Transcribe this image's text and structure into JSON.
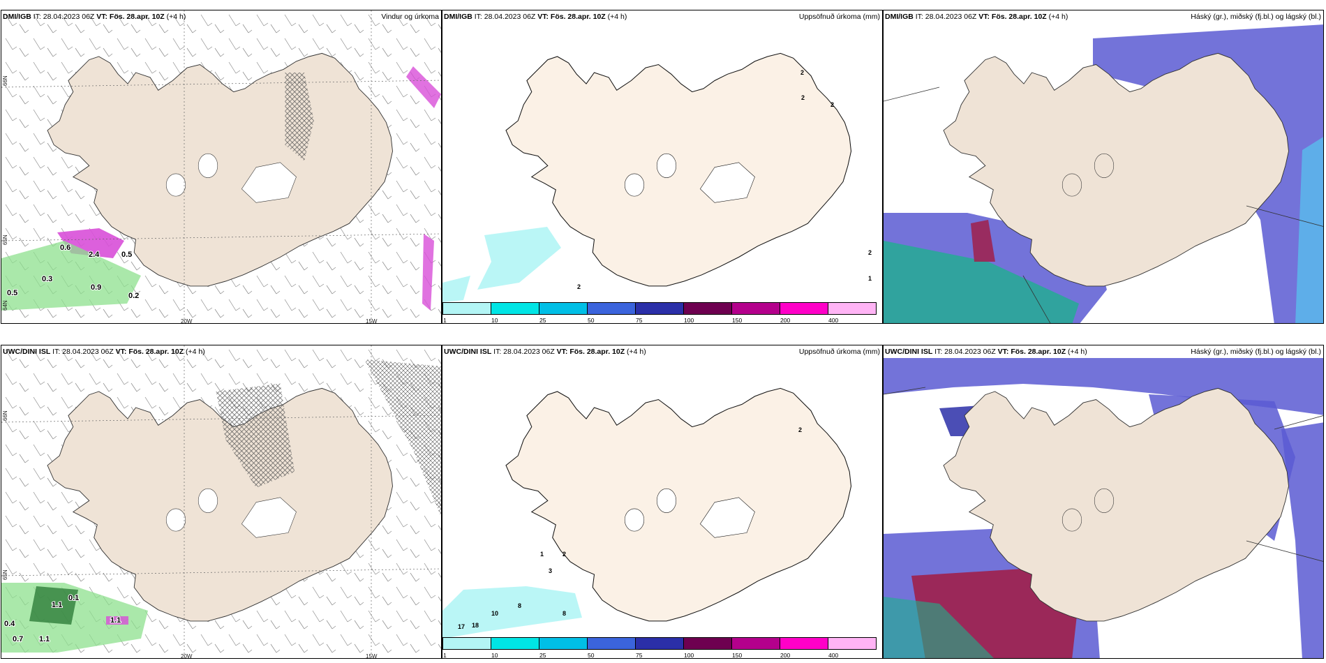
{
  "panels": [
    {
      "model": "DMI/IGB",
      "it": "IT: 28.04.2023 06Z",
      "vt": "VT: Fös. 28.apr. 10Z",
      "lead": "(+4 h)",
      "right_title": "Vindur og úrkoma",
      "labels": [
        "0.6",
        "2.4",
        "0.5",
        "0.3",
        "0.5",
        "0.9",
        "0.2"
      ]
    },
    {
      "model": "DMI/IGB",
      "it": "IT: 28.04.2023 06Z",
      "vt": "VT: Fös. 28.apr. 10Z",
      "lead": "(+4 h)",
      "right_title": "Uppsöfnuð úrkoma (mm)",
      "labels": [
        "2",
        "2",
        "2",
        "2",
        "1",
        "2"
      ]
    },
    {
      "model": "DMI/IGB",
      "it": "IT: 28.04.2023 06Z",
      "vt": "VT: Fös. 28.apr. 10Z",
      "lead": "(+4 h)",
      "right_title": "Háský (gr.), miðský (fj.bl.) og lágský (bl.)"
    },
    {
      "model": "UWC/DINI ISL",
      "it": "IT: 28.04.2023 06Z",
      "vt": "VT: Fös. 28.apr. 10Z",
      "lead": "(+4 h)",
      "right_title": "",
      "labels": [
        "0.4",
        "0.7",
        "1.1",
        "1.1",
        "0.1",
        "1.1"
      ]
    },
    {
      "model": "UWC/DINI ISL",
      "it": "IT: 28.04.2023 06Z",
      "vt": "VT: Fös. 28.apr. 10Z",
      "lead": "(+4 h)",
      "right_title": "Uppsöfnuð úrkoma (mm)",
      "labels": [
        "2",
        "2",
        "1",
        "3",
        "10",
        "8",
        "8",
        "17",
        "18"
      ]
    },
    {
      "model": "UWC/DINI ISL",
      "it": "IT: 28.04.2023 06Z",
      "vt": "VT: Fös. 28.apr. 10Z",
      "lead": "(+4 h)",
      "right_title": "Háský (gr.), miðský (fj.bl.) og lágský (bl.)"
    }
  ],
  "graticule": {
    "lat_66": "66N",
    "lat_65": "65N",
    "lat_64": "64N",
    "lon_20": "20W",
    "lon_15": "15W"
  },
  "colorbar": {
    "labels": [
      "1",
      "10",
      "25",
      "50",
      "75",
      "100",
      "150",
      "200",
      "400"
    ],
    "colors": [
      "#b3f5f5",
      "#00e5e5",
      "#00bfe6",
      "#3b64dc",
      "#2b2fa8",
      "#6e0050",
      "#b4008c",
      "#ff00c8",
      "#ffb4f5"
    ]
  },
  "colors": {
    "land": "#efe3d6",
    "land_light": "#fbf1e6",
    "sea": "#ffffff",
    "precip_green": "#8ee08e",
    "precip_pink": "#d84fd8",
    "cloud_blue": "#5a5ad2",
    "cloud_light": "#55c8f0",
    "cloud_red": "#a0204a"
  }
}
